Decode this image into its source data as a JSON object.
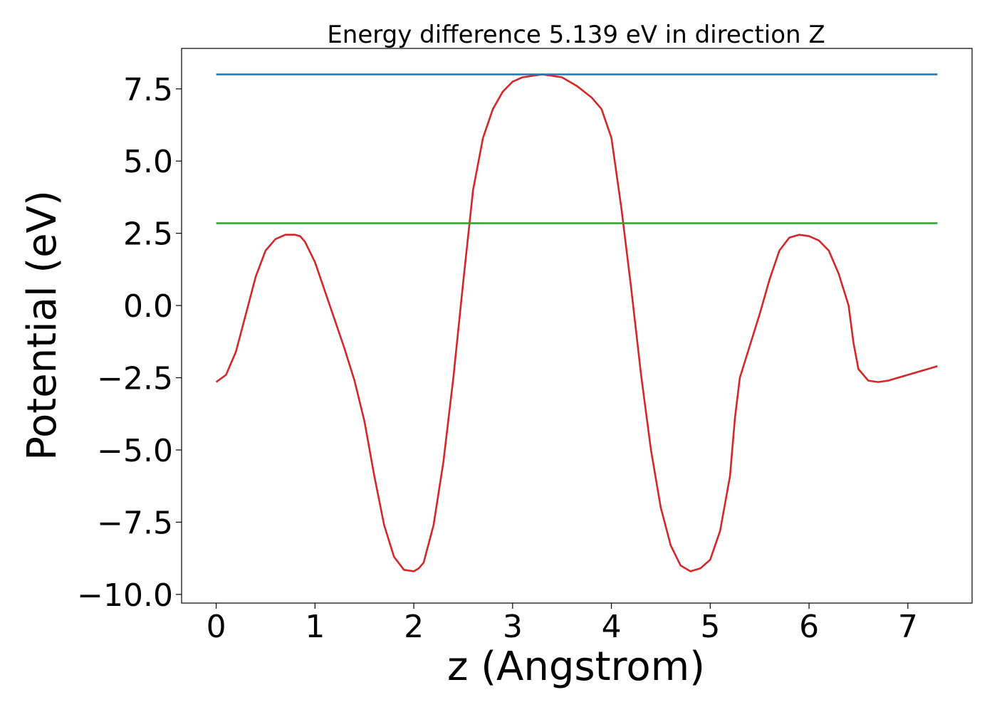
{
  "chart_data": {
    "type": "line",
    "title": "Energy difference 5.139 eV in direction Z",
    "xlabel": "z (Angstrom)",
    "ylabel": "Potential (eV)",
    "xlim": [
      -0.35,
      7.65
    ],
    "ylim": [
      -10.3,
      8.9
    ],
    "xticks": [
      0,
      1,
      2,
      3,
      4,
      5,
      6,
      7
    ],
    "xtick_labels": [
      "0",
      "1",
      "2",
      "3",
      "4",
      "5",
      "6",
      "7"
    ],
    "yticks": [
      7.5,
      5.0,
      2.5,
      0.0,
      -2.5,
      -5.0,
      -7.5,
      -10.0
    ],
    "ytick_labels": [
      "7.5",
      "5.0",
      "2.5",
      "0.0",
      "−2.5",
      "−5.0",
      "−7.5",
      "−10.0"
    ],
    "grid": false,
    "series": [
      {
        "color": "#d62728",
        "x": [
          0.0,
          0.1,
          0.2,
          0.3,
          0.4,
          0.5,
          0.6,
          0.7,
          0.8,
          0.85,
          0.9,
          1.0,
          1.1,
          1.2,
          1.3,
          1.4,
          1.5,
          1.6,
          1.7,
          1.8,
          1.9,
          2.0,
          2.05,
          2.1,
          2.2,
          2.3,
          2.4,
          2.5,
          2.6,
          2.7,
          2.8,
          2.9,
          3.0,
          3.1,
          3.2,
          3.3,
          3.4,
          3.5,
          3.65,
          3.8,
          3.9,
          4.0,
          4.1,
          4.2,
          4.3,
          4.4,
          4.5,
          4.6,
          4.7,
          4.8,
          4.9,
          5.0,
          5.1,
          5.2,
          5.25,
          5.3,
          5.4,
          5.5,
          5.6,
          5.7,
          5.8,
          5.9,
          6.0,
          6.1,
          6.2,
          6.3,
          6.4,
          6.45,
          6.5,
          6.6,
          6.7,
          6.8,
          6.9,
          7.0,
          7.1,
          7.2,
          7.3
        ],
        "y": [
          -2.65,
          -2.4,
          -1.6,
          -0.3,
          1.0,
          1.9,
          2.3,
          2.45,
          2.45,
          2.4,
          2.2,
          1.5,
          0.5,
          -0.5,
          -1.5,
          -2.6,
          -4.0,
          -5.9,
          -7.6,
          -8.7,
          -9.15,
          -9.2,
          -9.1,
          -8.9,
          -7.6,
          -5.4,
          -2.5,
          0.8,
          4.0,
          5.8,
          6.8,
          7.4,
          7.75,
          7.9,
          7.95,
          8.0,
          7.95,
          7.9,
          7.6,
          7.2,
          6.8,
          5.8,
          3.4,
          0.6,
          -2.4,
          -5.0,
          -7.0,
          -8.3,
          -9.0,
          -9.2,
          -9.1,
          -8.8,
          -7.8,
          -5.9,
          -3.9,
          -2.5,
          -1.4,
          -0.3,
          0.9,
          1.9,
          2.35,
          2.45,
          2.4,
          2.25,
          1.9,
          1.1,
          0.0,
          -1.3,
          -2.2,
          -2.6,
          -2.65,
          -2.6,
          -2.5,
          -2.4,
          -2.3,
          -2.2,
          -2.1
        ]
      },
      {
        "color": "#1f77b4",
        "x": [
          0.0,
          7.3
        ],
        "y": [
          8.0,
          8.0
        ]
      },
      {
        "color": "#2ca02c",
        "x": [
          0.0,
          7.3
        ],
        "y": [
          2.85,
          2.85
        ]
      }
    ]
  }
}
